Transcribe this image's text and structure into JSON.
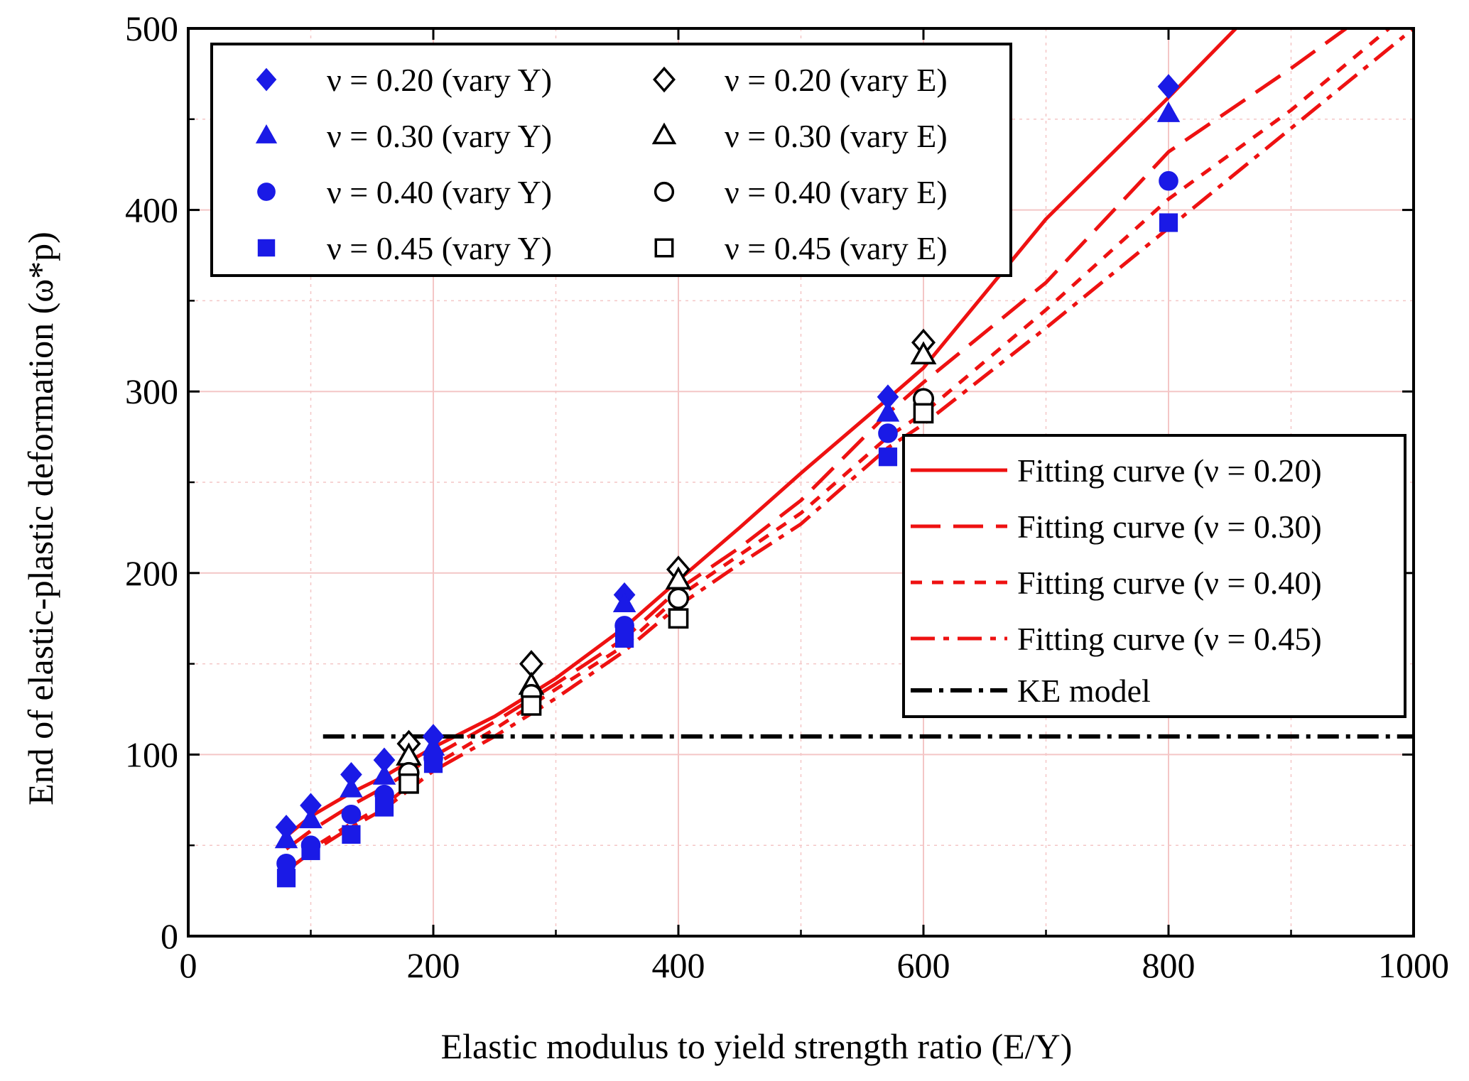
{
  "chart_data": {
    "type": "scatter",
    "xlabel": "Elastic modulus to yield strength ratio (E/Y)",
    "ylabel": "End of elastic-plastic deformation (ω*p)",
    "xlim": [
      0,
      1000
    ],
    "ylim": [
      0,
      500
    ],
    "x_ticks": [
      "0",
      "200",
      "400",
      "600",
      "800",
      "1000"
    ],
    "y_ticks": [
      "0",
      "100",
      "200",
      "300",
      "400",
      "500"
    ],
    "grid": true,
    "legends": [
      {
        "placement": "top-left",
        "entries": [
          "ν = 0.20 (vary Y)",
          "ν = 0.20 (vary E)",
          "ν = 0.30 (vary Y)",
          "ν = 0.30 (vary E)",
          "ν = 0.40 (vary Y)",
          "ν = 0.40 (vary E)",
          "ν = 0.45 (vary Y)",
          "ν = 0.45 (vary E)"
        ]
      },
      {
        "placement": "right",
        "entries": [
          "Fitting curve (ν = 0.20)",
          "Fitting curve (ν = 0.30)",
          "Fitting curve (ν = 0.40)",
          "Fitting curve (ν = 0.45)",
          "KE model"
        ]
      }
    ],
    "colors": {
      "marker_blue": "#1a1ae6",
      "curve_red": "#ee1111",
      "ke_black": "#000000",
      "grid": "#f4c6c6"
    },
    "scatter_series": [
      {
        "name": "ν = 0.20 (vary Y)",
        "marker": "diamond",
        "filled": true,
        "x": [
          80,
          100,
          133,
          160,
          200,
          356,
          571,
          800
        ],
        "y": [
          60,
          72,
          89,
          97,
          110,
          188,
          297,
          468
        ]
      },
      {
        "name": "ν = 0.30 (vary Y)",
        "marker": "triangle",
        "filled": true,
        "x": [
          80,
          100,
          133,
          160,
          200,
          356,
          571,
          800
        ],
        "y": [
          53,
          64,
          81,
          88,
          104,
          183,
          288,
          453
        ]
      },
      {
        "name": "ν = 0.40 (vary Y)",
        "marker": "circle",
        "filled": true,
        "x": [
          80,
          100,
          133,
          160,
          200,
          356,
          571,
          800
        ],
        "y": [
          40,
          50,
          67,
          78,
          98,
          171,
          277,
          416
        ]
      },
      {
        "name": "ν = 0.45 (vary Y)",
        "marker": "square",
        "filled": true,
        "x": [
          80,
          100,
          133,
          160,
          200,
          356,
          571,
          800
        ],
        "y": [
          32,
          47,
          56,
          71,
          95,
          164,
          264,
          393
        ]
      },
      {
        "name": "ν = 0.20 (vary E)",
        "marker": "diamond",
        "filled": false,
        "x": [
          180,
          280,
          400,
          600
        ],
        "y": [
          106,
          150,
          202,
          327
        ]
      },
      {
        "name": "ν = 0.30 (vary E)",
        "marker": "triangle",
        "filled": false,
        "x": [
          180,
          280,
          400,
          600
        ],
        "y": [
          99,
          138,
          196,
          320
        ]
      },
      {
        "name": "ν = 0.40 (vary E)",
        "marker": "circle",
        "filled": false,
        "x": [
          180,
          280,
          400,
          600
        ],
        "y": [
          90,
          133,
          186,
          296
        ]
      },
      {
        "name": "ν = 0.45 (vary E)",
        "marker": "square",
        "filled": false,
        "x": [
          180,
          280,
          400,
          600
        ],
        "y": [
          84,
          127,
          175,
          288
        ]
      }
    ],
    "line_series": [
      {
        "name": "Fitting curve (ν = 0.20)",
        "style": "solid",
        "x": [
          80,
          100,
          133,
          160,
          200,
          250,
          300,
          356,
          400,
          450,
          500,
          571,
          600,
          700,
          800,
          855
        ],
        "y": [
          55,
          66,
          79,
          88,
          104,
          121,
          142,
          170,
          196,
          225,
          255,
          296,
          313,
          395,
          462,
          500
        ]
      },
      {
        "name": "Fitting curve (ν = 0.30)",
        "style": "dash",
        "x": [
          80,
          100,
          133,
          160,
          200,
          250,
          300,
          356,
          400,
          450,
          500,
          571,
          600,
          700,
          800,
          900,
          945
        ],
        "y": [
          48,
          58,
          72,
          82,
          99,
          118,
          139,
          164,
          191,
          214,
          240,
          288,
          305,
          360,
          432,
          478,
          500
        ]
      },
      {
        "name": "Fitting curve (ν = 0.40)",
        "style": "short-dash",
        "x": [
          80,
          100,
          133,
          160,
          200,
          250,
          300,
          356,
          400,
          450,
          500,
          571,
          600,
          700,
          800,
          900,
          980
        ],
        "y": [
          38,
          48,
          62,
          72,
          94,
          114,
          136,
          160,
          187,
          210,
          233,
          275,
          288,
          345,
          406,
          455,
          500
        ]
      },
      {
        "name": "Fitting curve (ν = 0.45)",
        "style": "dash-dot",
        "x": [
          80,
          100,
          133,
          160,
          200,
          250,
          300,
          356,
          400,
          450,
          500,
          571,
          600,
          700,
          800,
          900,
          1000
        ],
        "y": [
          36,
          46,
          60,
          70,
          91,
          110,
          131,
          157,
          182,
          205,
          227,
          269,
          282,
          335,
          390,
          445,
          500
        ]
      },
      {
        "name": "KE model",
        "style": "dash-dot",
        "x": [
          110,
          1000
        ],
        "y": [
          110,
          110
        ]
      }
    ]
  }
}
